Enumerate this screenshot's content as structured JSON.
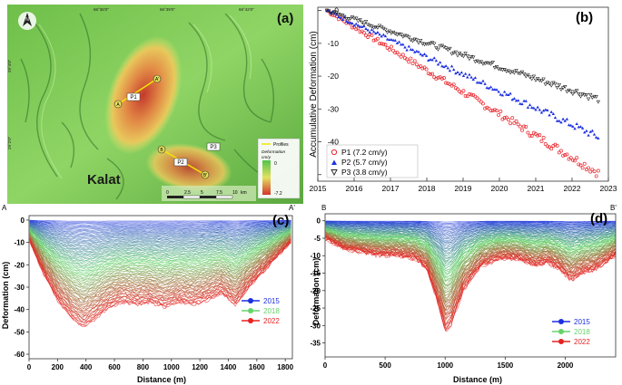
{
  "colors": {
    "terrain_light": "#9bdc6e",
    "terrain_dark": "#2f7d2a",
    "deform_low": "#d8e36a",
    "deform_high": "#c43a2c",
    "profile_line": "#f2e600",
    "p1": "#e8232a",
    "p2": "#1d2fe0",
    "p3": "#222222",
    "c2015": "#1b2fe0",
    "c2018": "#66d36a",
    "c2022": "#e62222"
  },
  "chart_data": [
    {
      "panel": "(a)",
      "type": "map",
      "place_label": "Kalat",
      "grid_labels_top": [
        "66°36'0\"",
        "66°39'0\"",
        "66°42'0\""
      ],
      "grid_labels_left": [
        "29°4'0\"",
        "29°2'0\""
      ],
      "north_symbol": "N",
      "points": [
        "P1",
        "P2",
        "P3"
      ],
      "profile_ends": [
        "A",
        "A'",
        "B",
        "B'"
      ],
      "legend": {
        "profiles_label": "Profiles",
        "deformation_label": "Deformation",
        "unit": "cm/y",
        "max": "0",
        "min": "-7.2"
      },
      "scalebar": {
        "ticks": [
          "0",
          "2.5",
          "5",
          "7.5",
          "10"
        ],
        "unit": "km"
      }
    },
    {
      "panel": "(b)",
      "type": "scatter",
      "ylabel": "Accumulative Deformation (cm)",
      "xlim": [
        2015,
        2023
      ],
      "ylim": [
        -52,
        1
      ],
      "xticks": [
        2015,
        2016,
        2017,
        2018,
        2019,
        2020,
        2021,
        2022,
        2023
      ],
      "yticks": [
        0,
        -10,
        -20,
        -30,
        -40,
        -50
      ],
      "x_start": 2015.25,
      "x_end": 2022.72,
      "series": [
        {
          "name": "P1 (7.2 cm/y)",
          "marker": "circle",
          "rate_cm_per_year": -7.2,
          "end_value": -49.5
        },
        {
          "name": "P2 (5.7 cm/y)",
          "marker": "triangle-up",
          "rate_cm_per_year": -5.7,
          "end_value": -38.5
        },
        {
          "name": "P3 (3.8 cm/y)",
          "marker": "triangle-down",
          "rate_cm_per_year": -3.8,
          "end_value": -27
        }
      ]
    },
    {
      "panel": "(c)",
      "type": "line",
      "xlabel": "Distance (m)",
      "ylabel": "Deformation (cm)",
      "xlim": [
        0,
        1850
      ],
      "ylim": [
        -62,
        2
      ],
      "xticks": [
        0,
        200,
        400,
        600,
        800,
        1000,
        1200,
        1400,
        1600,
        1800
      ],
      "yticks": [
        0,
        -10,
        -20,
        -30,
        -40,
        -50,
        -60
      ],
      "profile_start": "A",
      "profile_end": "A'",
      "legend": [
        "2015",
        "2018",
        "2022"
      ],
      "final_profile": {
        "x": [
          0,
          100,
          200,
          300,
          380,
          450,
          550,
          650,
          750,
          850,
          950,
          1050,
          1150,
          1250,
          1350,
          1450,
          1550,
          1650,
          1750,
          1840
        ],
        "y": [
          -9,
          -24,
          -36,
          -44,
          -48,
          -45,
          -40,
          -37,
          -38,
          -37,
          -39,
          -37,
          -38,
          -36,
          -33,
          -38,
          -30,
          -23,
          -16,
          -10
        ]
      }
    },
    {
      "panel": "(d)",
      "type": "line",
      "xlabel": "Distance (m)",
      "ylabel": "Deformation (cm)",
      "xlim": [
        0,
        2420
      ],
      "ylim": [
        -39,
        2
      ],
      "xticks": [
        0,
        500,
        1000,
        1500,
        2000
      ],
      "yticks": [
        0,
        -5,
        -10,
        -15,
        -20,
        -25,
        -30,
        -35
      ],
      "profile_start": "B",
      "profile_end": "B'",
      "legend": [
        "2015",
        "2018",
        "2022"
      ],
      "final_profile": {
        "x": [
          0,
          150,
          300,
          450,
          600,
          750,
          850,
          950,
          1000,
          1050,
          1150,
          1300,
          1450,
          1600,
          1750,
          1850,
          1950,
          2050,
          2150,
          2250,
          2420
        ],
        "y": [
          -5,
          -8,
          -9,
          -10,
          -10,
          -11,
          -14,
          -25,
          -32,
          -30,
          -20,
          -13,
          -11,
          -11,
          -13,
          -12,
          -14,
          -17,
          -15,
          -14,
          -10
        ]
      }
    }
  ]
}
